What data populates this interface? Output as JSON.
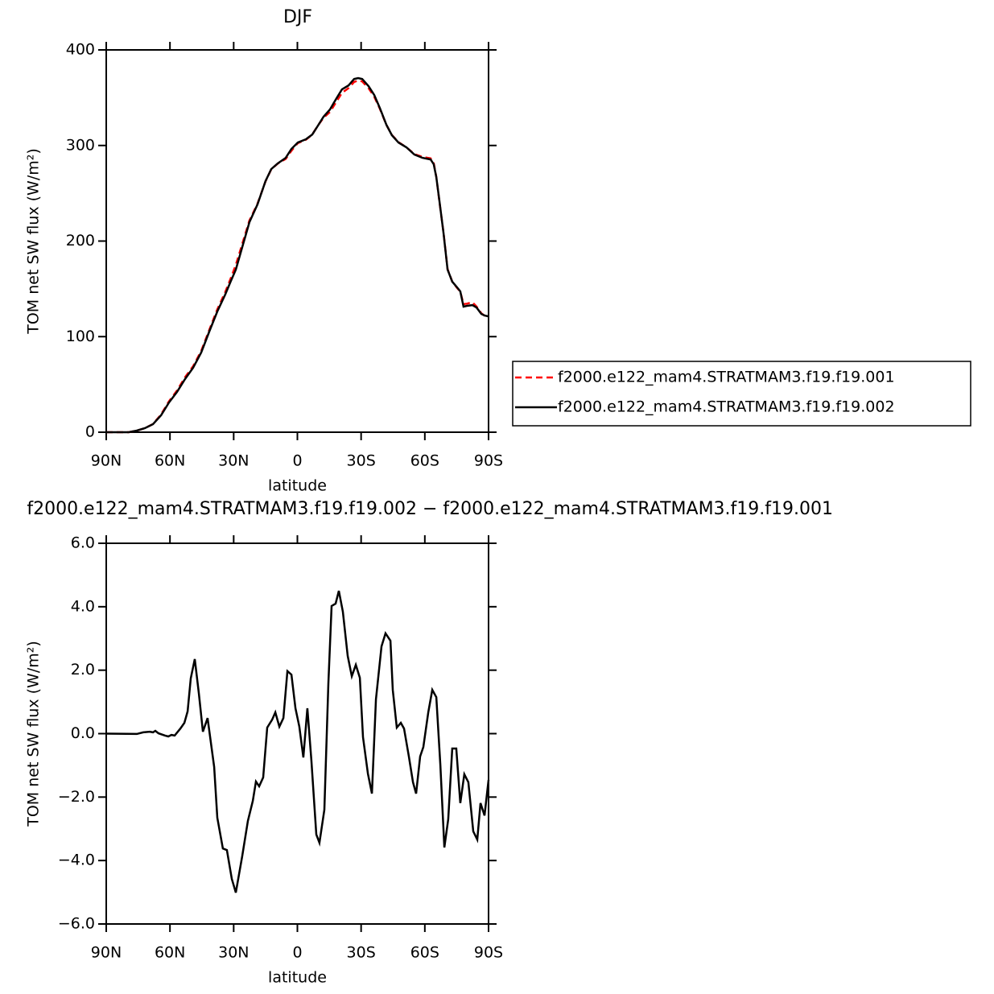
{
  "chart_data": [
    {
      "type": "line",
      "title": "DJF",
      "y_label": "TOM net SW flux (W/m²)",
      "x_label": "latitude",
      "x": [
        90,
        79.4,
        75.6,
        71.8,
        68.0,
        64.2,
        60.4,
        56.7,
        52.9,
        49.1,
        45.3,
        41.5,
        37.7,
        34.0,
        31.3,
        29.0,
        26.3,
        22.6,
        18.8,
        15.0,
        12.3,
        9.3,
        5.5,
        2.8,
        -0.2,
        -4.0,
        -7.0,
        -9.7,
        -12.3,
        -15.3,
        -18.4,
        -21.0,
        -24.1,
        -26.7,
        -28.6,
        -30.5,
        -33.5,
        -36.2,
        -38.8,
        -41.9,
        -44.5,
        -47.6,
        -51.3,
        -55.1,
        -58.9,
        -62.7,
        -64.2,
        -65.4,
        -66.9,
        -68.8,
        -70.7,
        -72.9,
        -75.2,
        -76.7,
        -78.2,
        -79.8,
        -82.4,
        -84.3,
        -86.6,
        -88.1,
        -90
      ],
      "series": [
        {
          "name": "f2000.e122_mam4.STRATMAM3.f19.f19.001",
          "color": "#ff0000",
          "dashed": true,
          "values": [
            0,
            0,
            1.7,
            4.2,
            8.6,
            18.5,
            32.5,
            43.5,
            57.5,
            69.0,
            85.0,
            107.0,
            128.5,
            146.5,
            161.5,
            175.0,
            194.5,
            221.5,
            239.0,
            262.5,
            275.0,
            281.0,
            286.0,
            294.5,
            302.5,
            306.0,
            311.5,
            321.0,
            329.0,
            335.0,
            346.0,
            355.0,
            360.0,
            366.5,
            368.0,
            367.0,
            360.0,
            351.0,
            338.5,
            321.5,
            311.0,
            303.5,
            298.0,
            291.0,
            288.0,
            286.5,
            281.5,
            267.0,
            241.0,
            208.5,
            170.5,
            157.5,
            151.0,
            147.0,
            134.0,
            134.5,
            136.0,
            131.5,
            124.5,
            122.0,
            121.0
          ]
        },
        {
          "name": "f2000.e122_mam4.STRATMAM3.f19.f19.002",
          "color": "#000000",
          "dashed": false,
          "values": [
            0,
            0,
            1.7,
            4.2,
            8.4,
            17.7,
            31.2,
            42.1,
            55.6,
            67.4,
            83.4,
            105.3,
            126.3,
            144.0,
            158.3,
            170.1,
            191.1,
            219.8,
            238.3,
            262.7,
            275.3,
            281.2,
            287.1,
            296.4,
            303.1,
            306.5,
            311.5,
            320.8,
            330.1,
            337.6,
            349.4,
            358.7,
            362.9,
            369.6,
            370.5,
            369.6,
            362.1,
            352.8,
            339.3,
            321.6,
            310.7,
            303.1,
            298.1,
            290.5,
            287.1,
            285.4,
            280.3,
            266.9,
            241.7,
            208.0,
            170.1,
            157.5,
            151.6,
            147.4,
            131.4,
            132.2,
            133.0,
            130.5,
            123.8,
            122.1,
            121.2
          ]
        }
      ],
      "xlim": [
        90,
        -90
      ],
      "xticks": [
        {
          "value": 90,
          "label": "90N"
        },
        {
          "value": 60,
          "label": "60N"
        },
        {
          "value": 30,
          "label": "30N"
        },
        0,
        {
          "value": -30,
          "label": "30S"
        },
        {
          "value": -60,
          "label": "60S"
        },
        {
          "value": -90,
          "label": "90S"
        }
      ],
      "ylim": [
        0,
        400
      ],
      "yticks": [
        0,
        100,
        200,
        300,
        400
      ],
      "legend": "right"
    },
    {
      "type": "line",
      "title": "f2000.e122_mam4.STRATMAM3.f19.f19.002 − f2000.e122_mam4.STRATMAM3.f19.f19.001",
      "y_label": "TOM net SW flux (W/m²)",
      "x_label": "latitude",
      "x": [
        90,
        75.6,
        72.6,
        69.5,
        68.0,
        66.9,
        65.4,
        62.3,
        60.8,
        59.3,
        57.8,
        55.1,
        53.2,
        51.7,
        50.2,
        48.3,
        46.4,
        44.5,
        42.3,
        39.2,
        37.7,
        35.1,
        33.2,
        30.9,
        29.0,
        26.0,
        23.3,
        21.0,
        19.5,
        18.0,
        16.1,
        14.2,
        11.9,
        10.4,
        8.5,
        6.6,
        4.7,
        2.8,
        0.9,
        -0.9,
        -2.8,
        -4.7,
        -6.6,
        -8.9,
        -10.4,
        -12.7,
        -14.6,
        -16.1,
        -18.0,
        -19.5,
        -21.4,
        -23.7,
        -25.6,
        -27.5,
        -29.4,
        -30.9,
        -33.2,
        -35.1,
        -37.0,
        -39.6,
        -41.5,
        -43.8,
        -44.9,
        -46.8,
        -48.7,
        -50.2,
        -52.5,
        -54.4,
        -55.9,
        -57.8,
        -59.3,
        -61.6,
        -63.5,
        -65.4,
        -67.3,
        -69.2,
        -71.0,
        -72.9,
        -74.8,
        -76.7,
        -78.6,
        -80.5,
        -82.8,
        -84.7,
        -86.2,
        -88.1,
        -90
      ],
      "series": [
        {
          "color": "#000000",
          "dashed": false,
          "values": [
            0,
            -0.01,
            0.04,
            0.06,
            0.04,
            0.09,
            0.01,
            -0.06,
            -0.09,
            -0.04,
            -0.06,
            0.16,
            0.34,
            0.7,
            1.74,
            2.35,
            1.26,
            0.06,
            0.49,
            -1.05,
            -2.65,
            -3.62,
            -3.67,
            -4.58,
            -5.01,
            -3.87,
            -2.75,
            -2.12,
            -1.51,
            -1.66,
            -1.38,
            0.19,
            0.44,
            0.67,
            0.22,
            0.49,
            1.97,
            1.86,
            0.8,
            0.22,
            -0.75,
            0.8,
            -0.85,
            -3.18,
            -3.44,
            -2.4,
            1.59,
            4.02,
            4.1,
            4.5,
            3.84,
            2.45,
            1.81,
            2.17,
            1.76,
            -0.11,
            -1.26,
            -1.89,
            1.08,
            2.75,
            3.16,
            2.93,
            1.38,
            0.19,
            0.34,
            0.16,
            -0.72,
            -1.53,
            -1.89,
            -0.72,
            -0.42,
            0.67,
            1.38,
            1.15,
            -0.98,
            -3.59,
            -2.7,
            -0.47,
            -0.47,
            -2.19,
            -1.28,
            -1.53,
            -3.08,
            -3.34,
            -2.19,
            -2.58,
            -1.46
          ]
        }
      ],
      "xlim": [
        90,
        -90
      ],
      "xticks": [
        {
          "value": 90,
          "label": "90N"
        },
        {
          "value": 60,
          "label": "60N"
        },
        {
          "value": 30,
          "label": "30N"
        },
        0,
        {
          "value": -30,
          "label": "30S"
        },
        {
          "value": -60,
          "label": "60S"
        },
        {
          "value": -90,
          "label": "90S"
        }
      ],
      "ylim": [
        -6,
        6
      ],
      "yticks": [
        {
          "value": -6,
          "label": "−6.0"
        },
        {
          "value": -4,
          "label": "−4.0"
        },
        {
          "value": -2,
          "label": "−2.0"
        },
        {
          "value": 0,
          "label": "0.0"
        },
        {
          "value": 2,
          "label": "2.0"
        },
        {
          "value": 4,
          "label": "4.0"
        },
        {
          "value": 6,
          "label": "6.0"
        }
      ]
    }
  ]
}
